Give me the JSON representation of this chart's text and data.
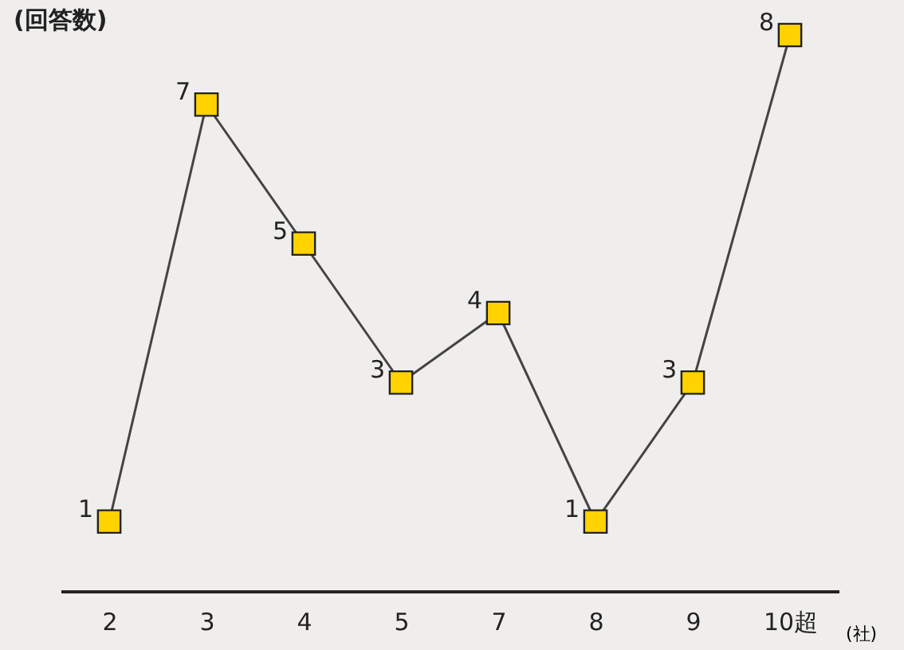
{
  "chart_data": {
    "type": "line",
    "ylabel": "(回答数)",
    "xlabel": "(社)",
    "categories": [
      "2",
      "3",
      "4",
      "5",
      "7",
      "8",
      "9",
      "10超"
    ],
    "series": [
      {
        "color": "#444444",
        "values": [
          1,
          7,
          5,
          3,
          4,
          1,
          3,
          8
        ]
      }
    ],
    "data_labels": true,
    "marker": "square",
    "grid": false
  }
}
